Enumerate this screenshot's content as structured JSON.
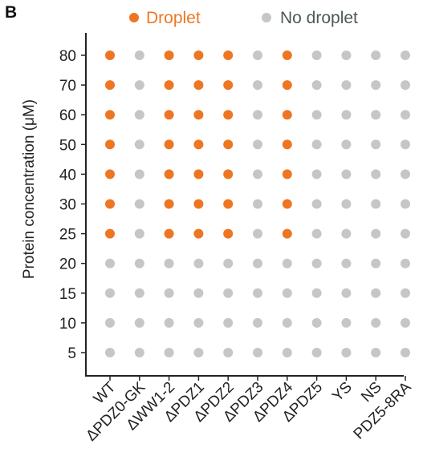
{
  "panel_label": "B",
  "colors": {
    "droplet": "#ee7623",
    "no_droplet": "#c6c6c6",
    "legend_no_droplet_text": "#4a5a58",
    "axis": "#222222"
  },
  "chart_data": {
    "type": "scatter",
    "title": "",
    "xlabel": "",
    "ylabel": "Protein concentration (μM)",
    "categories": [
      "WT",
      "ΔPDZ0-GK",
      "ΔWW1-2",
      "ΔPDZ1",
      "ΔPDZ2",
      "ΔPDZ3",
      "ΔPDZ4",
      "ΔPDZ5",
      "YS",
      "NS",
      "PDZ5-8RA"
    ],
    "concentrations": [
      5,
      10,
      15,
      20,
      25,
      30,
      40,
      50,
      60,
      70,
      80
    ],
    "legend": [
      {
        "key": "droplet",
        "label": "Droplet"
      },
      {
        "key": "no_droplet",
        "label": "No droplet"
      }
    ],
    "legend_position": "top",
    "grid": false,
    "droplet_min_concentration": {
      "WT": 25,
      "ΔPDZ0-GK": null,
      "ΔWW1-2": 25,
      "ΔPDZ1": 25,
      "ΔPDZ2": 25,
      "ΔPDZ3": null,
      "ΔPDZ4": 25,
      "ΔPDZ5": null,
      "YS": null,
      "NS": null,
      "PDZ5-8RA": null
    }
  }
}
